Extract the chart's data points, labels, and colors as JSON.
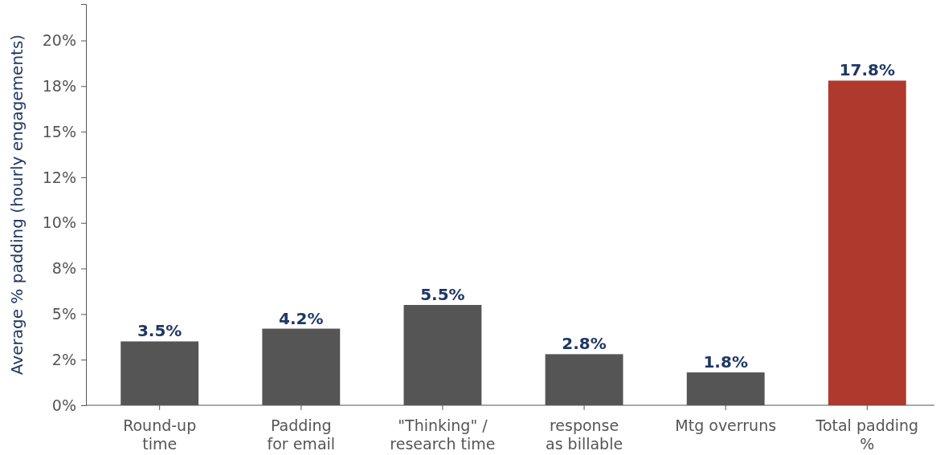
{
  "chart_data": {
    "type": "bar",
    "ylabel": "Average % padding (hourly engagements)",
    "categories": [
      "Round-up\ntime",
      "Padding\nfor email",
      "\"Thinking\" /\nresearch time",
      "response\nas billable",
      "Mtg overruns",
      "Total padding\n%"
    ],
    "values": [
      3.5,
      4.2,
      5.5,
      2.8,
      1.8,
      17.8
    ],
    "colors": [
      "#555555",
      "#555555",
      "#555555",
      "#555555",
      "#555555",
      "#b0392d"
    ],
    "value_labels": [
      "3.5%",
      "4.2%",
      "5.5%",
      "2.8%",
      "1.8%",
      "17.8%"
    ],
    "ylim": [
      0,
      22
    ],
    "yticks": [
      {
        "value": 0,
        "label": "0%"
      },
      {
        "value": 2.5,
        "label": "2%"
      },
      {
        "value": 5,
        "label": "5%"
      },
      {
        "value": 7.5,
        "label": "8%"
      },
      {
        "value": 10,
        "label": "10%"
      },
      {
        "value": 12.5,
        "label": "12%"
      },
      {
        "value": 15,
        "label": "15%"
      },
      {
        "value": 17.5,
        "label": "18%"
      },
      {
        "value": 20,
        "label": "20%"
      }
    ],
    "grid": false
  }
}
